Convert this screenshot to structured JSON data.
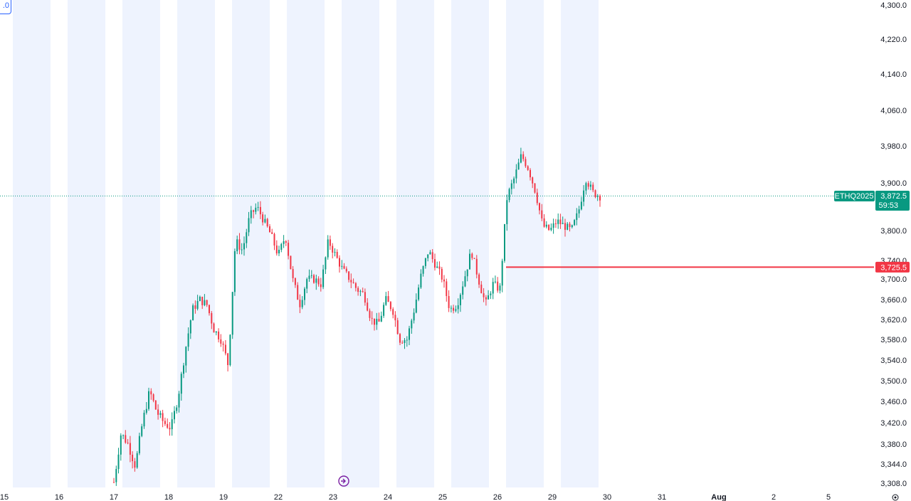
{
  "chart_data": {
    "type": "candlestick",
    "symbol": "ETHQ2025",
    "last_price": "3,872.5",
    "countdown": "59:53",
    "hline_price": "3,725.5",
    "ylim": [
      3300,
      4310
    ],
    "y_ticks": [
      {
        "value": 4300,
        "label": "4,300.0"
      },
      {
        "value": 4220,
        "label": "4,220.0"
      },
      {
        "value": 4140,
        "label": "4,140.0"
      },
      {
        "value": 4060,
        "label": "4,060.0"
      },
      {
        "value": 3980,
        "label": "3,980.0"
      },
      {
        "value": 3900,
        "label": "3,900.0"
      },
      {
        "value": 3800,
        "label": "3,800.0"
      },
      {
        "value": 3740,
        "label": "3,740.0"
      },
      {
        "value": 3700,
        "label": "3,700.0"
      },
      {
        "value": 3660,
        "label": "3,660.0"
      },
      {
        "value": 3620,
        "label": "3,620.0"
      },
      {
        "value": 3580,
        "label": "3,580.0"
      },
      {
        "value": 3540,
        "label": "3,540.0"
      },
      {
        "value": 3500,
        "label": "3,500.0"
      },
      {
        "value": 3460,
        "label": "3,460.0"
      },
      {
        "value": 3420,
        "label": "3,420.0"
      },
      {
        "value": 3380,
        "label": "3,380.0"
      },
      {
        "value": 3344,
        "label": "3,344.0"
      },
      {
        "value": 3308,
        "label": "3,308.0"
      }
    ],
    "x_ticks": [
      {
        "label": "15",
        "bold": false
      },
      {
        "label": "16",
        "bold": false
      },
      {
        "label": "17",
        "bold": false
      },
      {
        "label": "18",
        "bold": false
      },
      {
        "label": "19",
        "bold": false
      },
      {
        "label": "22",
        "bold": false
      },
      {
        "label": "23",
        "bold": false
      },
      {
        "label": "24",
        "bold": false
      },
      {
        "label": "25",
        "bold": false
      },
      {
        "label": "26",
        "bold": false
      },
      {
        "label": "29",
        "bold": false
      },
      {
        "label": "30",
        "bold": false
      },
      {
        "label": "31",
        "bold": false
      },
      {
        "label": "Aug",
        "bold": true
      },
      {
        "label": "2",
        "bold": false
      },
      {
        "label": "5",
        "bold": false
      }
    ],
    "session_days": [
      "15",
      "16",
      "17",
      "18",
      "19",
      "22",
      "23",
      "24",
      "25",
      "26",
      "29"
    ],
    "anchors": [
      [
        17.0,
        3310
      ],
      [
        17.1,
        3400
      ],
      [
        17.25,
        3380
      ],
      [
        17.4,
        3340
      ],
      [
        17.55,
        3420
      ],
      [
        17.7,
        3480
      ],
      [
        17.85,
        3440
      ],
      [
        18.0,
        3420
      ],
      [
        18.15,
        3410
      ],
      [
        18.2,
        3470
      ],
      [
        18.3,
        3560
      ],
      [
        18.45,
        3640
      ],
      [
        18.6,
        3660
      ],
      [
        18.8,
        3650
      ],
      [
        19.0,
        3600
      ],
      [
        19.1,
        3580
      ],
      [
        19.2,
        3530
      ],
      [
        22.0,
        3780
      ],
      [
        22.2,
        3760
      ],
      [
        22.5,
        3830
      ],
      [
        22.7,
        3850
      ],
      [
        22.9,
        3820
      ],
      [
        22.95,
        3790
      ],
      [
        23.1,
        3750
      ],
      [
        23.3,
        3790
      ],
      [
        23.5,
        3700
      ],
      [
        23.7,
        3650
      ],
      [
        23.9,
        3700
      ],
      [
        23.95,
        3700
      ],
      [
        24.0,
        3690
      ],
      [
        24.2,
        3780
      ],
      [
        24.4,
        3750
      ],
      [
        24.6,
        3720
      ],
      [
        24.8,
        3700
      ],
      [
        24.95,
        3680
      ],
      [
        25.0,
        3670
      ],
      [
        25.1,
        3620
      ],
      [
        25.25,
        3610
      ],
      [
        25.4,
        3660
      ],
      [
        25.6,
        3640
      ],
      [
        25.8,
        3580
      ],
      [
        25.95,
        3580
      ],
      [
        26.0,
        3640
      ],
      [
        26.2,
        3710
      ],
      [
        26.35,
        3760
      ],
      [
        26.5,
        3730
      ],
      [
        26.7,
        3700
      ],
      [
        26.85,
        3640
      ],
      [
        26.95,
        3650
      ],
      [
        27.0,
        3700
      ],
      [
        27.15,
        3760
      ],
      [
        27.3,
        3700
      ],
      [
        27.4,
        3650
      ],
      [
        27.5,
        3690
      ],
      [
        27.65,
        3680
      ],
      [
        27.75,
        3870
      ],
      [
        27.9,
        3910
      ],
      [
        28.05,
        3960
      ],
      [
        28.2,
        3930
      ],
      [
        28.4,
        3880
      ],
      [
        28.6,
        3810
      ],
      [
        28.7,
        3800
      ],
      [
        28.8,
        3820
      ],
      [
        28.95,
        3810
      ],
      [
        29.05,
        3800
      ],
      [
        29.15,
        3840
      ],
      [
        29.25,
        3910
      ],
      [
        29.4,
        3880
      ],
      [
        29.5,
        3872
      ]
    ]
  }
}
